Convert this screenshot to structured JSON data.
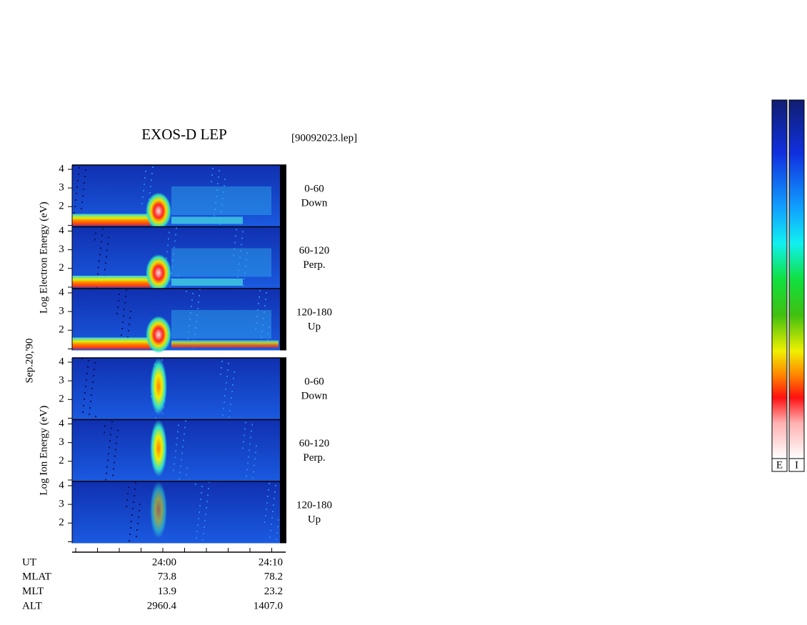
{
  "chart_data": {
    "type": "spectrogram",
    "title": "EXOS-D LEP",
    "file": "[90092023.lep]",
    "date": "Sep.20,'90",
    "ylim": [
      0.92,
      4.23
    ],
    "yticks": [
      2,
      3,
      4
    ],
    "groups": [
      {
        "ylabel": "Log Electron Energy (eV)",
        "kind": "electron",
        "panels": [
          {
            "label": "0-60",
            "sublabel": "Down"
          },
          {
            "label": "60-120",
            "sublabel": "Perp."
          },
          {
            "label": "120-180",
            "sublabel": "Up"
          }
        ]
      },
      {
        "ylabel": "Log Ion Energy (eV)",
        "kind": "ion",
        "panels": [
          {
            "label": "0-60",
            "sublabel": "Down"
          },
          {
            "label": "60-120",
            "sublabel": "Perp."
          },
          {
            "label": "120-180",
            "sublabel": "Up"
          }
        ]
      }
    ],
    "x_rows": [
      {
        "name": "UT",
        "values": [
          "24:00",
          "24:10"
        ]
      },
      {
        "name": "MLAT",
        "values": [
          "73.8",
          "78.2"
        ]
      },
      {
        "name": "MLT",
        "values": [
          "13.9",
          "23.2"
        ]
      },
      {
        "name": "ALT",
        "values": [
          "2960.4",
          "1407.0"
        ]
      }
    ],
    "colorbars": [
      "E",
      "I"
    ]
  }
}
